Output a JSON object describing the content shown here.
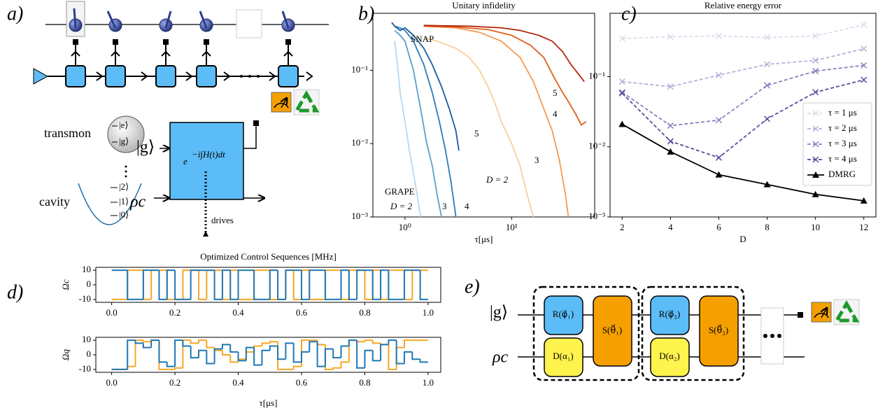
{
  "diagram_a": {
    "label": "a)",
    "transmon": "transmon",
    "excited": "|e⟩",
    "ground": "|g⟩",
    "cavity": "cavity",
    "fock_levels": [
      "|2⟩",
      "|1⟩",
      "|0⟩"
    ],
    "qubit_input": "|g⟩",
    "cavity_input": "ρc",
    "unitary_base": "e",
    "unitary_exponent": "−i∫H(t)dt",
    "drives": "drives"
  },
  "diagram_e": {
    "label": "e)",
    "qubit_input": "|g⟩",
    "cavity_input": "ρc",
    "gates": [
      {
        "rotation": "R(φ⃗₁)",
        "displacement": "D(α₁)",
        "snap": "S(θ⃗₁)"
      },
      {
        "rotation": "R(φ⃗₂)",
        "displacement": "D(α₂)",
        "snap": "S(θ⃗₂)"
      }
    ]
  },
  "chart_data": [
    {
      "type": "line",
      "panel_label": "b)",
      "title": "Unitary infidelity",
      "xlabel": "τ[μs]",
      "xlog": true,
      "ylog": true,
      "xlim": [
        0.5,
        60
      ],
      "ylim": [
        0.001,
        0.6
      ],
      "xticks": [
        {
          "value": 1,
          "label": "10⁰"
        },
        {
          "value": 10,
          "label": "10¹"
        }
      ],
      "yticks": [
        {
          "value": 0.001,
          "label": "10⁻³"
        },
        {
          "value": 0.01,
          "label": "10⁻²"
        },
        {
          "value": 0.1,
          "label": "10⁻¹"
        }
      ],
      "series": [
        {
          "color": "#b9d6ea",
          "x": [
            0.8,
            0.85,
            0.9,
            1.0,
            1.1,
            1.2,
            1.3,
            1.4
          ],
          "values": [
            0.25,
            0.12,
            0.05,
            0.02,
            0.008,
            0.004,
            0.002,
            0.001
          ]
        },
        {
          "color": "#5a9ec9",
          "x": [
            0.8,
            0.9,
            1.0,
            1.2,
            1.4,
            1.6,
            1.8,
            2.0,
            2.2
          ],
          "values": [
            0.35,
            0.3,
            0.25,
            0.1,
            0.03,
            0.01,
            0.005,
            0.002,
            0.001
          ]
        },
        {
          "color": "#2c7bb6",
          "x": [
            0.8,
            0.9,
            1.0,
            1.2,
            1.5,
            1.8,
            2.1,
            2.4,
            2.7,
            3.0
          ],
          "values": [
            0.4,
            0.38,
            0.35,
            0.25,
            0.12,
            0.05,
            0.02,
            0.008,
            0.003,
            0.001
          ]
        },
        {
          "color": "#1c5a9c",
          "x": [
            0.75,
            0.8,
            0.9,
            1.0,
            1.2,
            1.5,
            1.8,
            2.2,
            2.6,
            3.0,
            3.2
          ],
          "values": [
            0.45,
            0.4,
            0.35,
            0.38,
            0.3,
            0.2,
            0.12,
            0.06,
            0.03,
            0.015,
            0.008
          ]
        },
        {
          "color": "#fdcc9a",
          "x": [
            1.5,
            2,
            3,
            4,
            5,
            6,
            7,
            8,
            10,
            12,
            14,
            16
          ],
          "values": [
            0.28,
            0.25,
            0.2,
            0.15,
            0.1,
            0.06,
            0.035,
            0.02,
            0.01,
            0.005,
            0.002,
            0.001
          ]
        },
        {
          "color": "#f59a52",
          "x": [
            1.5,
            3,
            5,
            8,
            12,
            16,
            20,
            24,
            28,
            32,
            34
          ],
          "values": [
            0.4,
            0.38,
            0.33,
            0.25,
            0.15,
            0.07,
            0.03,
            0.015,
            0.006,
            0.002,
            0.001
          ]
        },
        {
          "color": "#e0601a",
          "x": [
            1.5,
            3,
            6,
            10,
            15,
            20,
            25,
            30,
            35,
            40,
            45,
            50
          ],
          "values": [
            0.4,
            0.39,
            0.36,
            0.3,
            0.22,
            0.15,
            0.08,
            0.05,
            0.035,
            0.025,
            0.018,
            0.02
          ]
        },
        {
          "color": "#b5250c",
          "x": [
            1.5,
            4,
            8,
            12,
            18,
            24,
            30,
            36,
            42,
            48
          ],
          "values": [
            0.41,
            0.4,
            0.38,
            0.35,
            0.3,
            0.25,
            0.18,
            0.12,
            0.09,
            0.07
          ]
        }
      ],
      "annotations": [
        {
          "text": "SNAP",
          "color": "#c0321a"
        },
        {
          "text": "5",
          "color": "#c0321a"
        },
        {
          "text": "4",
          "color": "#c0321a"
        },
        {
          "text": "3",
          "color": "#c0321a"
        },
        {
          "text": "D = 2",
          "color": "#c0321a"
        },
        {
          "text": "GRAPE",
          "color": "#2c7bb6"
        },
        {
          "text": "D = 2",
          "color": "#2c7bb6"
        },
        {
          "text": "3",
          "color": "#2c7bb6"
        },
        {
          "text": "4",
          "color": "#2c7bb6"
        },
        {
          "text": "5",
          "color": "#2c7bb6"
        }
      ]
    },
    {
      "type": "line",
      "panel_label": "c)",
      "title": "Relative energy error",
      "xlabel": "D",
      "ylog": true,
      "x": [
        2,
        4,
        6,
        8,
        10,
        12
      ],
      "xlim": [
        1.5,
        12.5
      ],
      "ylim": [
        0.001,
        0.8
      ],
      "xticks": [
        2,
        4,
        6,
        8,
        10,
        12
      ],
      "yticks": [
        {
          "value": 0.001,
          "label": "10⁻³"
        },
        {
          "value": 0.01,
          "label": "10⁻²"
        },
        {
          "value": 0.1,
          "label": "10⁻¹"
        }
      ],
      "legend": "right",
      "series": [
        {
          "name": "τ = 1 μs",
          "color": "#dcdcee",
          "marker": "x",
          "dash": true,
          "values": [
            0.35,
            0.37,
            0.38,
            0.36,
            0.38,
            0.55
          ]
        },
        {
          "name": "τ = 2 μs",
          "color": "#b7b1d8",
          "marker": "x",
          "dash": true,
          "values": [
            0.085,
            0.072,
            0.105,
            0.15,
            0.17,
            0.25
          ]
        },
        {
          "name": "τ = 3 μs",
          "color": "#8a80bd",
          "marker": "x",
          "dash": true,
          "values": [
            0.06,
            0.02,
            0.024,
            0.075,
            0.12,
            0.145
          ]
        },
        {
          "name": "τ = 4 μs",
          "color": "#5e4a9f",
          "marker": "x",
          "dash": true,
          "values": [
            0.058,
            0.012,
            0.007,
            0.025,
            0.06,
            0.09
          ]
        },
        {
          "name": "DMRG",
          "color": "#000000",
          "marker": "triangle",
          "dash": false,
          "values": [
            0.021,
            0.0085,
            0.004,
            0.0029,
            0.0021,
            0.0017
          ]
        }
      ]
    },
    {
      "type": "step",
      "panel_label": "d)",
      "title": "Optimized Control Sequences [MHz]",
      "ylabel": "Ωc",
      "xlim": [
        -0.05,
        1.04
      ],
      "ylim": [
        -12,
        12
      ],
      "xticks": [
        {
          "value": 0,
          "label": "0.0"
        },
        {
          "value": 0.2,
          "label": "0.2"
        },
        {
          "value": 0.4,
          "label": "0.4"
        },
        {
          "value": 0.6,
          "label": "0.6"
        },
        {
          "value": 0.8,
          "label": "0.8"
        },
        {
          "value": 1,
          "label": "1.0"
        }
      ],
      "yticks": [
        -10,
        0,
        10
      ],
      "x": [
        0,
        0.025,
        0.05,
        0.075,
        0.1,
        0.125,
        0.15,
        0.175,
        0.2,
        0.225,
        0.25,
        0.275,
        0.3,
        0.325,
        0.35,
        0.375,
        0.4,
        0.425,
        0.45,
        0.475,
        0.5,
        0.525,
        0.55,
        0.575,
        0.6,
        0.625,
        0.65,
        0.675,
        0.7,
        0.725,
        0.75,
        0.775,
        0.8,
        0.825,
        0.85,
        0.875,
        0.9,
        0.925,
        0.95,
        0.975
      ],
      "series": [
        {
          "color": "#f5a623",
          "values": [
            -10,
            -10,
            10,
            10,
            -10,
            10,
            10,
            -10,
            -10,
            10,
            10,
            -10,
            10,
            10,
            -10,
            10,
            -10,
            -10,
            10,
            10,
            -10,
            -10,
            10,
            -10,
            10,
            -10,
            -10,
            10,
            10,
            -10,
            10,
            10,
            -10,
            10,
            -10,
            10,
            10,
            -10,
            10,
            10
          ]
        },
        {
          "color": "#1f77b4",
          "values": [
            10,
            10,
            -10,
            -10,
            10,
            10,
            -10,
            10,
            -10,
            -10,
            10,
            10,
            10,
            -10,
            10,
            -10,
            10,
            10,
            -10,
            -10,
            10,
            -10,
            10,
            10,
            -10,
            10,
            10,
            -10,
            -10,
            10,
            -10,
            10,
            10,
            -10,
            10,
            -10,
            -10,
            10,
            10,
            -10
          ]
        }
      ]
    },
    {
      "type": "step",
      "ylabel": "Ωq",
      "xlabel": "τ[μs]",
      "xlim": [
        -0.05,
        1.04
      ],
      "ylim": [
        -12,
        12
      ],
      "xticks": [
        {
          "value": 0,
          "label": "0.0"
        },
        {
          "value": 0.2,
          "label": "0.2"
        },
        {
          "value": 0.4,
          "label": "0.4"
        },
        {
          "value": 0.6,
          "label": "0.6"
        },
        {
          "value": 0.8,
          "label": "0.8"
        },
        {
          "value": 1,
          "label": "1.0"
        }
      ],
      "yticks": [
        -10,
        0,
        10
      ],
      "x": [
        0,
        0.025,
        0.05,
        0.075,
        0.1,
        0.125,
        0.15,
        0.175,
        0.2,
        0.225,
        0.25,
        0.275,
        0.3,
        0.325,
        0.35,
        0.375,
        0.4,
        0.425,
        0.45,
        0.475,
        0.5,
        0.525,
        0.55,
        0.575,
        0.6,
        0.625,
        0.65,
        0.675,
        0.7,
        0.725,
        0.75,
        0.775,
        0.8,
        0.825,
        0.85,
        0.875,
        0.9,
        0.925,
        0.95,
        0.975
      ],
      "series": [
        {
          "color": "#f5a623",
          "values": [
            -10,
            -10,
            -8,
            10,
            9,
            10,
            -10,
            -10,
            -9,
            10,
            8,
            10,
            5,
            3,
            0,
            -5,
            -3,
            2,
            6,
            8,
            9,
            -10,
            -10,
            -8,
            10,
            10,
            7,
            -10,
            -9,
            -5,
            10,
            9,
            10,
            8,
            7,
            -10,
            5,
            10,
            10,
            10
          ]
        },
        {
          "color": "#1f77b4",
          "values": [
            -10,
            -10,
            10,
            8,
            5,
            10,
            -5,
            -8,
            10,
            6,
            -2,
            3,
            -6,
            4,
            7,
            2,
            -4,
            5,
            -7,
            3,
            6,
            -3,
            8,
            -5,
            2,
            9,
            -8,
            4,
            -2,
            6,
            10,
            -9,
            3,
            -4,
            7,
            10,
            -6,
            2,
            -3,
            -5
          ]
        }
      ]
    }
  ]
}
